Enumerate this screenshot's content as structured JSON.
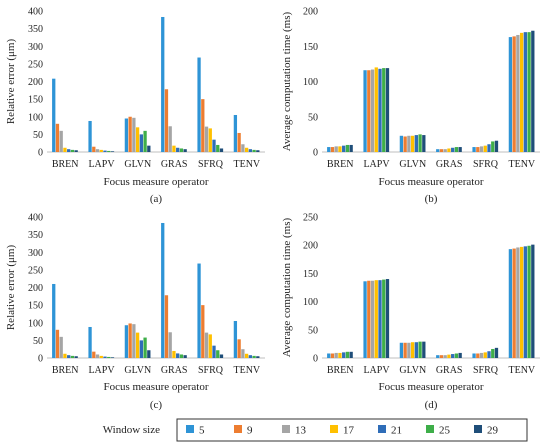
{
  "chart_data": [
    {
      "id": "a",
      "caption": "(a)",
      "type": "bar",
      "xlabel": "Focus measure operator",
      "ylabel": "Relative error (μm)",
      "ylim": [
        0,
        400
      ],
      "yticks": [
        0,
        50,
        100,
        150,
        200,
        250,
        300,
        350,
        400
      ],
      "categories": [
        "BREN",
        "LAPV",
        "GLVN",
        "GRAS",
        "SFRQ",
        "TENV"
      ],
      "series": [
        {
          "name": "5",
          "values": [
            208,
            88,
            95,
            383,
            268,
            105
          ]
        },
        {
          "name": "9",
          "values": [
            80,
            15,
            100,
            178,
            150,
            54
          ]
        },
        {
          "name": "13",
          "values": [
            60,
            8,
            97,
            73,
            72,
            22
          ]
        },
        {
          "name": "17",
          "values": [
            12,
            6,
            70,
            18,
            67,
            12
          ]
        },
        {
          "name": "21",
          "values": [
            8,
            4,
            50,
            12,
            35,
            8
          ]
        },
        {
          "name": "25",
          "values": [
            6,
            3,
            60,
            10,
            20,
            6
          ]
        },
        {
          "name": "29",
          "values": [
            5,
            2,
            18,
            8,
            10,
            5
          ]
        }
      ]
    },
    {
      "id": "b",
      "caption": "(b)",
      "type": "bar",
      "xlabel": "Focus measure operator",
      "ylabel": "Average computation time (ms)",
      "ylim": [
        0,
        200
      ],
      "yticks": [
        0,
        50,
        100,
        150,
        200
      ],
      "categories": [
        "BREN",
        "LAPV",
        "GLVN",
        "GRAS",
        "SFRQ",
        "TENV"
      ],
      "series": [
        {
          "name": "5",
          "values": [
            7,
            116,
            23,
            4,
            7,
            163
          ]
        },
        {
          "name": "9",
          "values": [
            7,
            116,
            22,
            4,
            7,
            164
          ]
        },
        {
          "name": "13",
          "values": [
            8,
            117,
            23,
            4,
            8,
            166
          ]
        },
        {
          "name": "17",
          "values": [
            8,
            120,
            23,
            5,
            9,
            169
          ]
        },
        {
          "name": "21",
          "values": [
            9,
            118,
            24,
            6,
            11,
            170
          ]
        },
        {
          "name": "25",
          "values": [
            10,
            119,
            25,
            7,
            15,
            170
          ]
        },
        {
          "name": "29",
          "values": [
            10,
            119,
            24,
            7,
            16,
            172
          ]
        }
      ]
    },
    {
      "id": "c",
      "caption": "(c)",
      "type": "bar",
      "xlabel": "Focus measure operator",
      "ylabel": "Relative error (μm)",
      "ylim": [
        0,
        400
      ],
      "yticks": [
        0,
        50,
        100,
        150,
        200,
        250,
        300,
        350,
        400
      ],
      "categories": [
        "BREN",
        "LAPV",
        "GLVN",
        "GRAS",
        "SFRQ",
        "TENV"
      ],
      "series": [
        {
          "name": "5",
          "values": [
            210,
            88,
            93,
            383,
            268,
            105
          ]
        },
        {
          "name": "9",
          "values": [
            80,
            18,
            98,
            178,
            150,
            53
          ]
        },
        {
          "name": "13",
          "values": [
            60,
            10,
            96,
            73,
            72,
            25
          ]
        },
        {
          "name": "17",
          "values": [
            12,
            6,
            72,
            20,
            67,
            12
          ]
        },
        {
          "name": "21",
          "values": [
            8,
            4,
            50,
            13,
            35,
            8
          ]
        },
        {
          "name": "25",
          "values": [
            6,
            3,
            58,
            10,
            22,
            6
          ]
        },
        {
          "name": "29",
          "values": [
            5,
            2,
            22,
            8,
            10,
            5
          ]
        }
      ]
    },
    {
      "id": "d",
      "caption": "(d)",
      "type": "bar",
      "xlabel": "Focus measure operator",
      "ylabel": "Average computation time (ms)",
      "ylim": [
        0,
        250
      ],
      "yticks": [
        0,
        50,
        100,
        150,
        200,
        250
      ],
      "categories": [
        "BREN",
        "LAPV",
        "GLVN",
        "GRAS",
        "SFRQ",
        "TENV"
      ],
      "series": [
        {
          "name": "5",
          "values": [
            8,
            136,
            27,
            5,
            8,
            193
          ]
        },
        {
          "name": "9",
          "values": [
            8,
            137,
            27,
            5,
            8,
            194
          ]
        },
        {
          "name": "13",
          "values": [
            9,
            137,
            27,
            5,
            9,
            196
          ]
        },
        {
          "name": "17",
          "values": [
            9,
            138,
            28,
            6,
            10,
            197
          ]
        },
        {
          "name": "21",
          "values": [
            10,
            138,
            28,
            7,
            12,
            198
          ]
        },
        {
          "name": "25",
          "values": [
            11,
            139,
            29,
            8,
            16,
            199
          ]
        },
        {
          "name": "29",
          "values": [
            11,
            140,
            29,
            9,
            18,
            201
          ]
        }
      ]
    }
  ],
  "legend": {
    "title": "Window size",
    "entries": [
      "5",
      "9",
      "13",
      "17",
      "21",
      "25",
      "29"
    ]
  },
  "colors": [
    "#2e94d6",
    "#ed7d31",
    "#a5a5a5",
    "#ffc000",
    "#2f6db8",
    "#3eae49",
    "#1f4e79"
  ]
}
